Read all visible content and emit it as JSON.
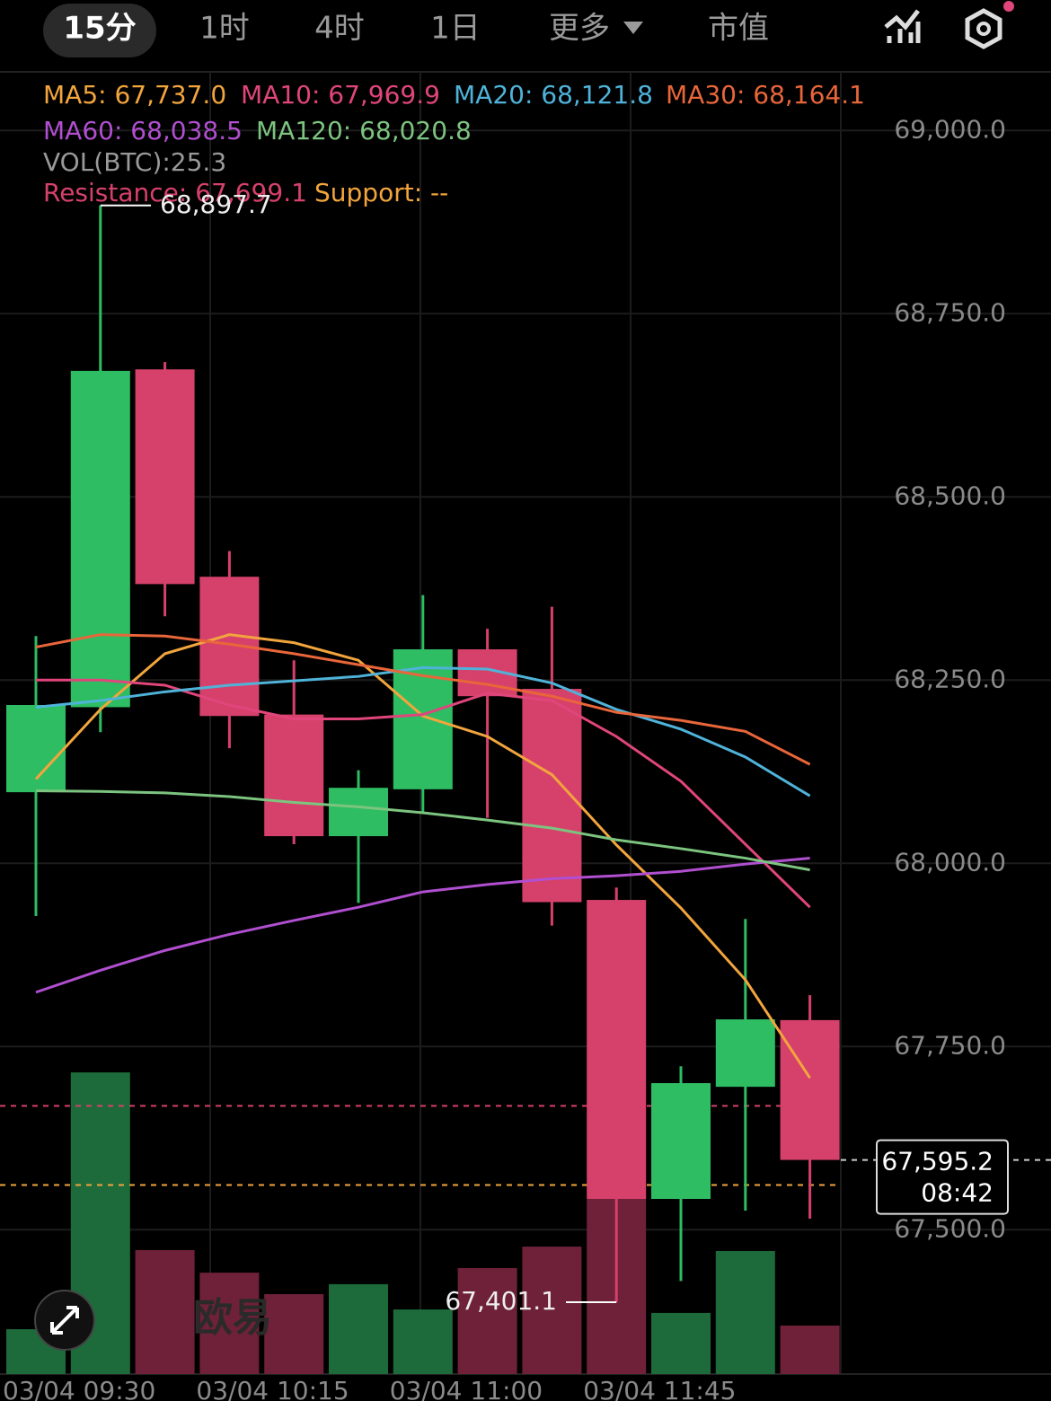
{
  "tabs": [
    "15分",
    "1时",
    "4时",
    "1日",
    "更多",
    "市值"
  ],
  "watermark": "欧易",
  "chart_data": {
    "type": "candlestick",
    "categories": [
      "03/04 09:30",
      null,
      null,
      "03/04 10:15",
      null,
      null,
      "03/04 11:00",
      null,
      null,
      "03/04 11:45",
      null,
      null,
      null
    ],
    "open": [
      68097,
      68213,
      68674,
      68391,
      68203,
      68037,
      68101,
      68292,
      68238,
      67950,
      67542,
      67695,
      67786
    ],
    "high": [
      68310,
      68897.7,
      68684,
      68426,
      68277,
      68127,
      68366,
      68320,
      68350,
      67967,
      67723,
      67924,
      67820
    ],
    "low": [
      67928,
      68179,
      68337,
      68157,
      68026,
      67946,
      68069,
      68062,
      67915,
      67401.1,
      67430,
      67526,
      67515
    ],
    "close": [
      68216,
      68672,
      68381,
      68201,
      68037,
      68103,
      68292,
      68228,
      67947,
      67542,
      67700,
      67787,
      67595.2
    ],
    "volume": [
      23.4,
      157.4,
      64.7,
      52.9,
      41.7,
      46.9,
      33.7,
      55.3,
      66.5,
      91.4,
      31.9,
      64.2,
      25.3
    ],
    "up_color": "#2ebd62",
    "down_color": "#d6416b",
    "up_volume_color": "#1d6b3b",
    "down_volume_color": "#6e2139",
    "ylim": [
      67303,
      69080
    ],
    "yticks": [
      {
        "value": 69000,
        "label": "69,000.0"
      },
      {
        "value": 68750,
        "label": "68,750.0"
      },
      {
        "value": 68500,
        "label": "68,500.0"
      },
      {
        "value": 68250,
        "label": "68,250.0"
      },
      {
        "value": 68000,
        "label": "68,000.0"
      },
      {
        "value": 67750,
        "label": "67,750.0"
      },
      {
        "value": 67500,
        "label": "67,500.0"
      }
    ],
    "grid": true,
    "series": [
      {
        "name": "MA5: 67,737.0",
        "color": "#f2a53d",
        "values": [
          68115,
          68210,
          68286,
          68312,
          68301,
          68277,
          68201,
          68173,
          68121,
          68025,
          67939,
          67841,
          67707
        ]
      },
      {
        "name": "MA10: 67,969.9",
        "color": "#e0457b",
        "values": [
          68250,
          68250,
          68243,
          68216,
          68197,
          68197,
          68203,
          68232,
          68222,
          68173,
          68112,
          68026,
          67940
        ]
      },
      {
        "name": "MA20: 68,121.8",
        "color": "#4fb3d9",
        "values": [
          68213,
          68222,
          68234,
          68243,
          68249,
          68255,
          68267,
          68265,
          68246,
          68210,
          68183,
          68145,
          68092
        ]
      },
      {
        "name": "MA30: 68,164.1",
        "color": "#e8663a",
        "values": [
          68295,
          68312,
          68310,
          68299,
          68286,
          68271,
          68256,
          68244,
          68228,
          68206,
          68195,
          68180,
          68135
        ]
      },
      {
        "name": "MA60: 68,038.5",
        "color": "#b04fcf",
        "values": [
          67824,
          67854,
          67881,
          67903,
          67922,
          67940,
          67961,
          67971,
          67979,
          67983,
          67989,
          67999,
          68007
        ]
      },
      {
        "name": "MA120: 68,020.8",
        "color": "#7cc47f",
        "values": [
          68099,
          68098,
          68096,
          68091,
          68083,
          68077,
          68069,
          68059,
          68048,
          68032,
          68020,
          68007,
          67991
        ]
      }
    ],
    "volume_label": "VOL(BTC):25.3",
    "resistance_label": "Resistance: 67,699.1",
    "support_label": "Support: --",
    "resistance_line": 67669,
    "support_line": 67561,
    "price": {
      "value": 67595.2,
      "label": "67,595.2"
    },
    "countdown": "08:42",
    "high_mark": {
      "value": 68897.7,
      "label": "68,897.7"
    },
    "low_mark": {
      "value": 67401.1,
      "label": "67,401.1"
    }
  }
}
